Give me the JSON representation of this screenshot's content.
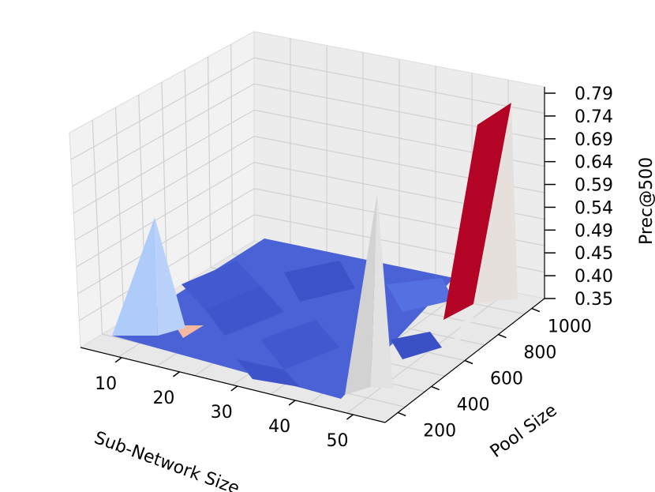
{
  "chart_data": {
    "type": "surface3d",
    "title": "",
    "xlabel": "Sub-Network Size",
    "ylabel": "Pool Size",
    "zlabel": "Prec@500",
    "x_ticks": [
      "10",
      "20",
      "30",
      "40",
      "50"
    ],
    "y_ticks": [
      "200",
      "400",
      "600",
      "800",
      "1000"
    ],
    "z_ticks": [
      "0.35",
      "0.40",
      "0.45",
      "0.49",
      "0.54",
      "0.59",
      "0.64",
      "0.69",
      "0.74",
      "0.79"
    ],
    "zlim": [
      0.35,
      0.79
    ],
    "colormap": "coolwarm",
    "colors": {
      "low": "#3b4cc0",
      "mid": "#dddddd",
      "high": "#b40426"
    },
    "base_level": 0.37,
    "peaks": [
      {
        "x": 5,
        "y": 200,
        "z": 0.59
      },
      {
        "x": 45,
        "y": 200,
        "z": 0.69
      },
      {
        "x": 50,
        "y": 1000,
        "z": 0.79
      }
    ],
    "grid": true
  }
}
